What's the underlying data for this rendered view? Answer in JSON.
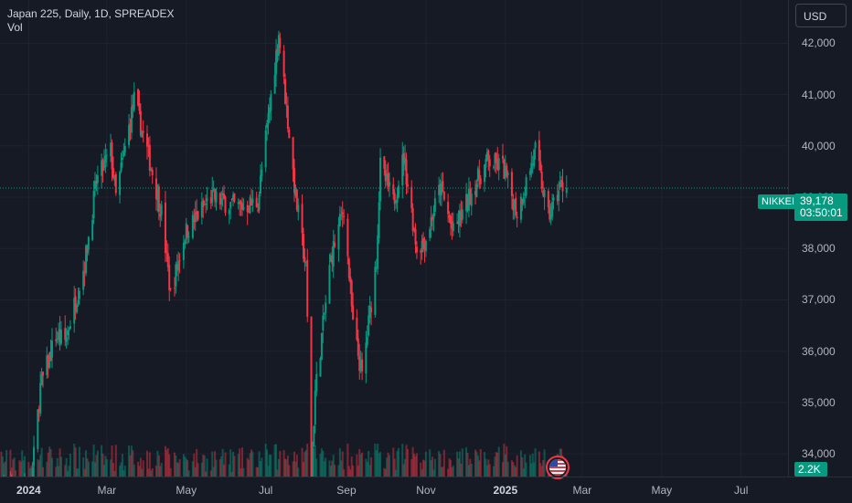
{
  "legend": {
    "title": "Japan 225, Daily, 1D, SPREADEX",
    "indicator": "Vol"
  },
  "toolbar": {
    "currency": "USD"
  },
  "price_marker": {
    "symbol": "NIKKEI",
    "price": "39,178",
    "countdown": "03:50:01",
    "volume": "2.2K"
  },
  "colors": {
    "up": "#089981",
    "down": "#f23645",
    "background": "#161a25",
    "grid": "#1f2330"
  },
  "chart_data": {
    "type": "candlestick",
    "ylim": [
      33700,
      42700
    ],
    "y_ticks": [
      {
        "value": 34000,
        "label": "34,000"
      },
      {
        "value": 35000,
        "label": "35,000"
      },
      {
        "value": 36000,
        "label": "36,000"
      },
      {
        "value": 37000,
        "label": "37,000"
      },
      {
        "value": 38000,
        "label": "38,000"
      },
      {
        "value": 39000,
        "label": "39,000"
      },
      {
        "value": 40000,
        "label": "40,000"
      },
      {
        "value": 41000,
        "label": "41,000"
      },
      {
        "value": 42000,
        "label": "42,000"
      }
    ],
    "x_ticks": [
      {
        "date": "2024-01-01",
        "label": "2024",
        "year": true
      },
      {
        "date": "2024-03-01",
        "label": "Mar",
        "year": false
      },
      {
        "date": "2024-05-01",
        "label": "May",
        "year": false
      },
      {
        "date": "2024-07-01",
        "label": "Jul",
        "year": false
      },
      {
        "date": "2024-09-01",
        "label": "Sep",
        "year": false
      },
      {
        "date": "2024-11-01",
        "label": "Nov",
        "year": false
      },
      {
        "date": "2025-01-01",
        "label": "2025",
        "year": true
      },
      {
        "date": "2025-03-01",
        "label": "Mar",
        "year": false
      },
      {
        "date": "2025-05-01",
        "label": "May",
        "year": false
      },
      {
        "date": "2025-07-01",
        "label": "Jul",
        "year": false
      }
    ],
    "xlim": [
      "2023-12-10",
      "2025-08-06"
    ],
    "last_price": 39178,
    "anchors": [
      [
        "2023-12-11",
        33300
      ],
      [
        "2024-01-03",
        33400
      ],
      [
        "2024-01-10",
        35300
      ],
      [
        "2024-01-22",
        36300
      ],
      [
        "2024-01-29",
        36200
      ],
      [
        "2024-02-13",
        37700
      ],
      [
        "2024-02-22",
        39300
      ],
      [
        "2024-03-04",
        39900
      ],
      [
        "2024-03-08",
        39000
      ],
      [
        "2024-03-22",
        40900
      ],
      [
        "2024-04-04",
        39600
      ],
      [
        "2024-04-12",
        38700
      ],
      [
        "2024-04-19",
        37100
      ],
      [
        "2024-04-30",
        38300
      ],
      [
        "2024-05-20",
        39000
      ],
      [
        "2024-06-10",
        38800
      ],
      [
        "2024-06-25",
        38900
      ],
      [
        "2024-07-11",
        42200
      ],
      [
        "2024-07-24",
        39000
      ],
      [
        "2024-08-01",
        37600
      ],
      [
        "2024-08-05",
        33600
      ],
      [
        "2024-08-08",
        35200
      ],
      [
        "2024-08-20",
        37800
      ],
      [
        "2024-08-30",
        38800
      ],
      [
        "2024-09-06",
        36500
      ],
      [
        "2024-09-13",
        35500
      ],
      [
        "2024-09-24",
        37800
      ],
      [
        "2024-09-27",
        39600
      ],
      [
        "2024-10-07",
        38900
      ],
      [
        "2024-10-15",
        39800
      ],
      [
        "2024-10-25",
        38000
      ],
      [
        "2024-11-01",
        38200
      ],
      [
        "2024-11-12",
        39200
      ],
      [
        "2024-11-22",
        38300
      ],
      [
        "2024-12-06",
        39100
      ],
      [
        "2024-12-18",
        39700
      ],
      [
        "2024-12-30",
        39600
      ],
      [
        "2025-01-10",
        38700
      ],
      [
        "2025-01-24",
        39900
      ],
      [
        "2025-02-03",
        38600
      ],
      [
        "2025-02-12",
        39200
      ],
      [
        "2025-02-17",
        39178
      ]
    ],
    "volume_max_label": "2.2K"
  }
}
